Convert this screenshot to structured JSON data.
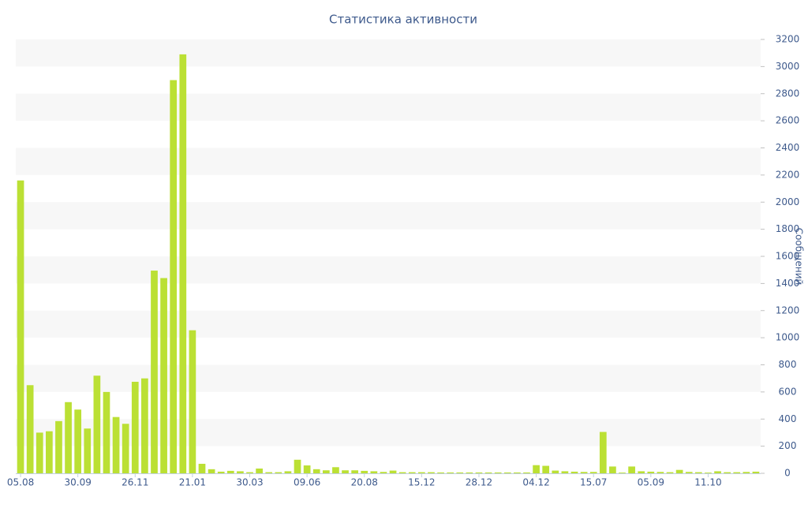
{
  "chart_data": {
    "type": "bar",
    "title": "Статистика активности",
    "y_axis_label": "Сообщений",
    "categories": [
      "05.08",
      null,
      null,
      null,
      null,
      null,
      "30.09",
      null,
      null,
      null,
      null,
      null,
      "26.11",
      null,
      null,
      null,
      null,
      null,
      "21.01",
      null,
      null,
      null,
      null,
      null,
      "30.03",
      null,
      null,
      null,
      null,
      null,
      "09.06",
      null,
      null,
      null,
      null,
      null,
      "20.08",
      null,
      null,
      null,
      null,
      null,
      "15.12",
      null,
      null,
      null,
      null,
      null,
      "28.12",
      null,
      null,
      null,
      null,
      null,
      "04.12",
      null,
      null,
      null,
      null,
      null,
      "15.07",
      null,
      null,
      null,
      null,
      null,
      "05.09",
      null,
      null,
      null,
      null,
      null,
      "11.10",
      null,
      null,
      null,
      null,
      null
    ],
    "values": [
      2160,
      650,
      300,
      310,
      385,
      525,
      470,
      330,
      720,
      600,
      415,
      365,
      675,
      700,
      1495,
      1440,
      2900,
      3090,
      1055,
      70,
      30,
      12,
      18,
      15,
      8,
      35,
      8,
      8,
      15,
      100,
      58,
      30,
      22,
      45,
      22,
      22,
      18,
      15,
      10,
      20,
      8,
      8,
      8,
      8,
      6,
      6,
      6,
      6,
      6,
      6,
      6,
      6,
      6,
      6,
      60,
      55,
      20,
      15,
      12,
      10,
      10,
      305,
      50,
      5,
      50,
      15,
      12,
      10,
      8,
      25,
      10,
      8,
      5,
      15,
      8,
      8,
      10,
      12
    ],
    "color": "#bbe034",
    "ylim": [
      0,
      3200
    ],
    "yticks": [
      0,
      200,
      400,
      600,
      800,
      1000,
      1200,
      1400,
      1600,
      1800,
      2000,
      2200,
      2400,
      2600,
      2800,
      3000,
      3200
    ],
    "grid": true,
    "y_axis_side": "right"
  }
}
